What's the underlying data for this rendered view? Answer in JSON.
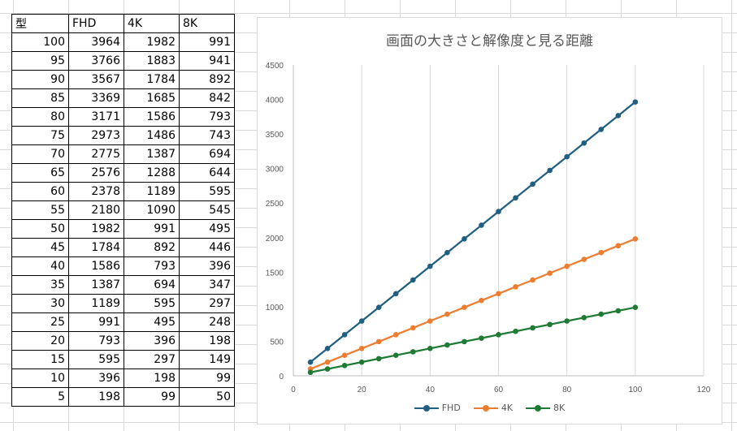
{
  "table": {
    "headers": [
      "型",
      "FHD",
      "4K",
      "8K"
    ],
    "rows": [
      [
        "100",
        "3964",
        "1982",
        "991"
      ],
      [
        "95",
        "3766",
        "1883",
        "941"
      ],
      [
        "90",
        "3567",
        "1784",
        "892"
      ],
      [
        "85",
        "3369",
        "1685",
        "842"
      ],
      [
        "80",
        "3171",
        "1586",
        "793"
      ],
      [
        "75",
        "2973",
        "1486",
        "743"
      ],
      [
        "70",
        "2775",
        "1387",
        "694"
      ],
      [
        "65",
        "2576",
        "1288",
        "644"
      ],
      [
        "60",
        "2378",
        "1189",
        "595"
      ],
      [
        "55",
        "2180",
        "1090",
        "545"
      ],
      [
        "50",
        "1982",
        "991",
        "495"
      ],
      [
        "45",
        "1784",
        "892",
        "446"
      ],
      [
        "40",
        "1586",
        "793",
        "396"
      ],
      [
        "35",
        "1387",
        "694",
        "347"
      ],
      [
        "30",
        "1189",
        "595",
        "297"
      ],
      [
        "25",
        "991",
        "495",
        "248"
      ],
      [
        "20",
        "793",
        "396",
        "198"
      ],
      [
        "15",
        "595",
        "297",
        "149"
      ],
      [
        "10",
        "396",
        "198",
        "99"
      ],
      [
        "5",
        "198",
        "99",
        "50"
      ]
    ]
  },
  "chart_data": {
    "type": "line",
    "title": "画面の大きさと解像度と見る距離",
    "xlabel": "",
    "ylabel": "",
    "xlim": [
      0,
      120
    ],
    "ylim": [
      0,
      4500
    ],
    "xticks": [
      0,
      20,
      40,
      60,
      80,
      100,
      120
    ],
    "yticks": [
      0,
      500,
      1000,
      1500,
      2000,
      2500,
      3000,
      3500,
      4000,
      4500
    ],
    "grid": "vertical",
    "legend_position": "bottom",
    "x": [
      5,
      10,
      15,
      20,
      25,
      30,
      35,
      40,
      45,
      50,
      55,
      60,
      65,
      70,
      75,
      80,
      85,
      90,
      95,
      100
    ],
    "series": [
      {
        "name": "FHD",
        "color": "#1f5f82",
        "values": [
          198,
          396,
          595,
          793,
          991,
          1189,
          1387,
          1586,
          1784,
          1982,
          2180,
          2378,
          2576,
          2775,
          2973,
          3171,
          3369,
          3567,
          3766,
          3964
        ]
      },
      {
        "name": "4K",
        "color": "#ed7d31",
        "values": [
          99,
          198,
          297,
          396,
          495,
          595,
          694,
          793,
          892,
          991,
          1090,
          1189,
          1288,
          1387,
          1486,
          1586,
          1685,
          1784,
          1883,
          1982
        ]
      },
      {
        "name": "8K",
        "color": "#1e7a34",
        "values": [
          50,
          99,
          149,
          198,
          248,
          297,
          347,
          396,
          446,
          495,
          545,
          595,
          644,
          694,
          743,
          793,
          842,
          892,
          941,
          991
        ]
      }
    ]
  }
}
